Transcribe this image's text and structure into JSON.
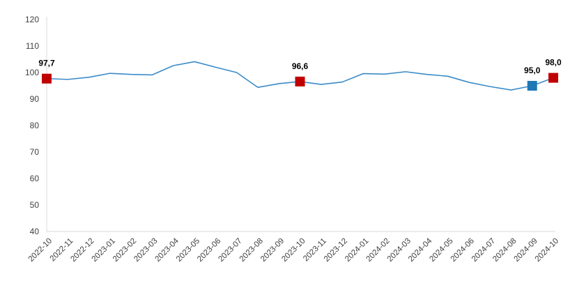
{
  "chart_data": {
    "type": "line",
    "title": "",
    "xlabel": "",
    "ylabel": "",
    "categories": [
      "2022-10",
      "2022-11",
      "2022-12",
      "2023-01",
      "2023-02",
      "2023-03",
      "2023-04",
      "2023-05",
      "2023-06",
      "2023-07",
      "2023-08",
      "2023-09",
      "2023-10",
      "2023-11",
      "2023-12",
      "2024-01",
      "2024-02",
      "2024-03",
      "2024-04",
      "2024-05",
      "2024-06",
      "2024-07",
      "2024-08",
      "2024-09",
      "2024-10"
    ],
    "values": [
      97.7,
      97.4,
      98.2,
      99.7,
      99.3,
      99.1,
      102.6,
      104.1,
      102.0,
      100.0,
      94.4,
      95.8,
      96.6,
      95.5,
      96.4,
      99.6,
      99.4,
      100.3,
      99.3,
      98.6,
      96.3,
      94.7,
      93.4,
      95.0,
      98.0
    ],
    "ylim": [
      40,
      120
    ],
    "y_ticks": [
      40,
      50,
      60,
      70,
      80,
      90,
      100,
      110,
      120
    ],
    "grid": false,
    "legend_position": "none",
    "line_color": "#3a8bc8",
    "axis_color": "#e0e0e0",
    "tick_label_color": "#404040",
    "value_label_color": "#000000",
    "annotated_points": [
      {
        "index": 0,
        "label": "97,7",
        "marker_color": "#c00000"
      },
      {
        "index": 12,
        "label": "96,6",
        "marker_color": "#c00000"
      },
      {
        "index": 23,
        "label": "95,0",
        "marker_color": "#1f78b5"
      },
      {
        "index": 24,
        "label": "98,0",
        "marker_color": "#c00000"
      }
    ]
  }
}
